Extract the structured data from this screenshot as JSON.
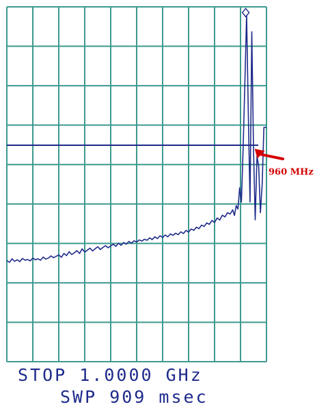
{
  "status": {
    "stop": "STOP 1.0000 GHz",
    "sweep": "SWP 909 msec"
  },
  "colors": {
    "grid": "#3c9a8e",
    "trace": "#1e2a8a",
    "annotation": "#d40000",
    "background": "#ffffff"
  },
  "chart_data": {
    "type": "line",
    "title": "",
    "xlabel": "",
    "ylabel": "",
    "x_unit": "GHz",
    "xlim": [
      0.4,
      1.0
    ],
    "ylim": [
      0,
      1
    ],
    "grid": true,
    "vertical_divisions": 10,
    "horizontal_divisions": 9,
    "reference_line": 0.61,
    "marker": {
      "x": 0.952,
      "y": 0.98,
      "symbol": "diamond"
    },
    "annotation": {
      "label": "960 MHz",
      "x": 0.96,
      "y": 0.6
    },
    "series": [
      {
        "x": [
          0.4,
          0.406,
          0.412,
          0.418,
          0.424,
          0.43,
          0.436,
          0.442,
          0.448,
          0.454,
          0.46,
          0.466,
          0.472,
          0.478,
          0.484,
          0.49,
          0.496,
          0.502,
          0.508,
          0.514,
          0.52,
          0.526,
          0.532,
          0.538,
          0.544,
          0.55,
          0.556,
          0.562,
          0.568,
          0.574,
          0.58,
          0.586,
          0.592,
          0.598,
          0.604,
          0.61,
          0.616,
          0.622,
          0.628,
          0.634,
          0.64,
          0.646,
          0.652,
          0.658,
          0.664,
          0.67,
          0.676,
          0.682,
          0.688,
          0.694,
          0.7,
          0.706,
          0.712,
          0.718,
          0.724,
          0.73,
          0.736,
          0.742,
          0.748,
          0.754,
          0.76,
          0.766,
          0.772,
          0.778,
          0.784,
          0.79,
          0.796,
          0.802,
          0.808,
          0.814,
          0.82,
          0.826,
          0.832,
          0.838,
          0.844,
          0.85,
          0.856,
          0.862,
          0.868,
          0.874,
          0.88,
          0.886,
          0.892,
          0.898,
          0.904,
          0.91,
          0.916,
          0.922,
          0.926,
          0.93,
          0.934,
          0.938,
          0.942,
          0.946,
          0.95,
          0.954,
          0.958,
          0.962,
          0.966,
          0.97,
          0.974,
          0.978,
          0.982,
          0.986,
          0.99,
          0.994,
          1.0
        ],
        "y": [
          0.285,
          0.28,
          0.29,
          0.283,
          0.287,
          0.282,
          0.291,
          0.286,
          0.288,
          0.284,
          0.292,
          0.287,
          0.29,
          0.286,
          0.295,
          0.289,
          0.292,
          0.298,
          0.293,
          0.297,
          0.301,
          0.294,
          0.305,
          0.299,
          0.31,
          0.302,
          0.307,
          0.313,
          0.305,
          0.318,
          0.309,
          0.314,
          0.32,
          0.312,
          0.318,
          0.324,
          0.316,
          0.322,
          0.327,
          0.321,
          0.326,
          0.331,
          0.325,
          0.334,
          0.328,
          0.336,
          0.331,
          0.339,
          0.334,
          0.341,
          0.337,
          0.343,
          0.34,
          0.345,
          0.342,
          0.349,
          0.344,
          0.352,
          0.347,
          0.355,
          0.35,
          0.357,
          0.352,
          0.36,
          0.356,
          0.362,
          0.358,
          0.366,
          0.361,
          0.37,
          0.365,
          0.374,
          0.37,
          0.379,
          0.375,
          0.385,
          0.381,
          0.391,
          0.387,
          0.398,
          0.392,
          0.405,
          0.399,
          0.413,
          0.408,
          0.42,
          0.416,
          0.428,
          0.412,
          0.44,
          0.43,
          0.49,
          0.45,
          0.6,
          0.78,
          0.98,
          0.7,
          0.45,
          0.93,
          0.6,
          0.4,
          0.58,
          0.55,
          0.42,
          0.5,
          0.66,
          0.66
        ]
      }
    ]
  }
}
